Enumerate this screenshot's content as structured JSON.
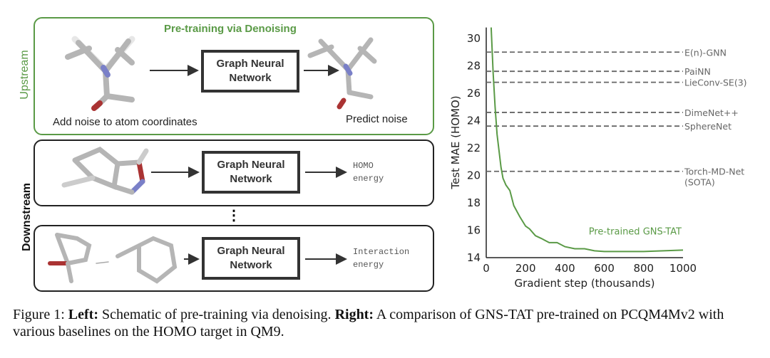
{
  "left": {
    "upstream_label": "Upstream",
    "downstream_label": "Downstream",
    "upstream_title": "Pre-training via Denoising",
    "gnn_line1": "Graph Neural",
    "gnn_line2": "Network",
    "noise_caption": "Add noise to atom coordinates",
    "predict_caption": "Predict noise",
    "homo_line1": "HOMO",
    "homo_line2": "energy",
    "inter_line1": "Interaction",
    "inter_line2": "energy",
    "ellipsis": "⋮",
    "green": "#5a9a46"
  },
  "chart_data": {
    "type": "line",
    "xlabel": "Gradient step (thousands)",
    "ylabel": "Test MAE (HOMO)",
    "xlim": [
      0,
      1000
    ],
    "ylim": [
      14,
      30.8
    ],
    "xticks": [
      0,
      200,
      400,
      600,
      800,
      1000
    ],
    "yticks": [
      14,
      16,
      18,
      20,
      22,
      24,
      26,
      28,
      30
    ],
    "grid": false,
    "series": [
      {
        "name": "Pre-trained GNS-TAT",
        "color": "#5a9a46",
        "x": [
          25,
          35,
          45,
          55,
          65,
          75,
          85,
          100,
          120,
          140,
          170,
          200,
          220,
          250,
          280,
          320,
          360,
          400,
          450,
          500,
          550,
          600,
          700,
          800,
          1000
        ],
        "y": [
          30.8,
          27.5,
          25,
          23,
          21.8,
          20.6,
          19.8,
          19.3,
          18.9,
          17.8,
          17,
          16.3,
          16.1,
          15.6,
          15.4,
          15.1,
          15.1,
          14.8,
          14.65,
          14.65,
          14.5,
          14.45,
          14.45,
          14.45,
          14.55
        ]
      }
    ],
    "baselines": [
      {
        "name": "E(n)-GNN",
        "value": 29.0
      },
      {
        "name": "PaiNN",
        "value": 27.6
      },
      {
        "name": "LieConv-SE(3)",
        "value": 26.8
      },
      {
        "name": "DimeNet++",
        "value": 24.6
      },
      {
        "name": "SphereNet",
        "value": 23.6
      },
      {
        "name": "Torch-MD-Net",
        "name2": "(SOTA)",
        "value": 20.3
      }
    ]
  },
  "caption": {
    "prefix": "Figure 1: ",
    "left_bold": "Left:",
    "left_text": " Schematic of pre-training via denoising. ",
    "right_bold": "Right:",
    "right_text": " A comparison of GNS-TAT pre-trained on PCQM4Mv2 with various baselines on the HOMO target in QM9."
  }
}
